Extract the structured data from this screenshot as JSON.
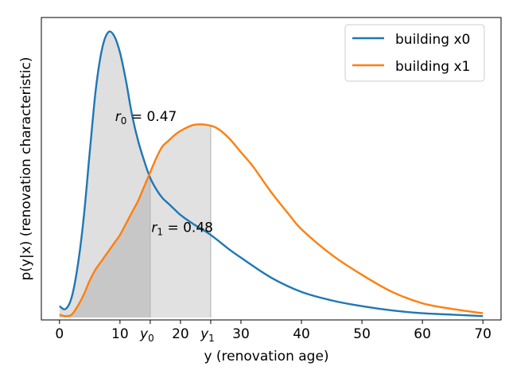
{
  "chart_data": {
    "type": "line",
    "xlabel": "y (renovation age)",
    "ylabel": "p(y|x) (renovation characteristic)",
    "xlim": [
      -3,
      73
    ],
    "ylim": [
      0,
      1
    ],
    "x_ticks": [
      0,
      10,
      20,
      30,
      40,
      50,
      60,
      70
    ],
    "x_tick_labels": [
      "0",
      "10",
      "20",
      "30",
      "40",
      "50",
      "60",
      "70"
    ],
    "special_ticks": [
      {
        "x": 15,
        "label": "y",
        "sub": "0"
      },
      {
        "x": 25,
        "label": "y",
        "sub": "1"
      }
    ],
    "y_ticks_shown": false,
    "grid": false,
    "legend_position": "top-right",
    "series": [
      {
        "name": "building x0",
        "color": "#1f77b4",
        "x": [
          0,
          1,
          2,
          3,
          4,
          5,
          6,
          7,
          8,
          9,
          10,
          11,
          12,
          13,
          14,
          15,
          16,
          17,
          18,
          19,
          20,
          22,
          25,
          28,
          30,
          35,
          40,
          45,
          50,
          55,
          60,
          65,
          70
        ],
        "y": [
          0.04,
          0.03,
          0.07,
          0.18,
          0.35,
          0.58,
          0.8,
          0.94,
          1.0,
          0.99,
          0.93,
          0.83,
          0.71,
          0.62,
          0.55,
          0.49,
          0.45,
          0.42,
          0.4,
          0.38,
          0.36,
          0.33,
          0.29,
          0.24,
          0.21,
          0.14,
          0.09,
          0.06,
          0.04,
          0.025,
          0.015,
          0.01,
          0.005
        ]
      },
      {
        "name": "building x1",
        "color": "#ff7f0e",
        "x": [
          0,
          1,
          2,
          3,
          4,
          5,
          6,
          7,
          8,
          9,
          10,
          11,
          12,
          13,
          14,
          15,
          16,
          17,
          18,
          19,
          20,
          22,
          24,
          26,
          28,
          30,
          32,
          35,
          38,
          40,
          45,
          50,
          55,
          60,
          65,
          70
        ],
        "y": [
          0.01,
          0.005,
          0.01,
          0.04,
          0.08,
          0.13,
          0.17,
          0.2,
          0.23,
          0.26,
          0.29,
          0.33,
          0.37,
          0.41,
          0.46,
          0.51,
          0.56,
          0.6,
          0.62,
          0.64,
          0.655,
          0.675,
          0.677,
          0.665,
          0.63,
          0.58,
          0.53,
          0.44,
          0.36,
          0.31,
          0.22,
          0.15,
          0.09,
          0.05,
          0.03,
          0.015
        ]
      }
    ],
    "shaded_regions": [
      {
        "series": "building x0",
        "from": 0,
        "to": 15,
        "color": "#808080",
        "alpha": 0.25
      },
      {
        "series": "building x1",
        "from": 0,
        "to": 15,
        "color": "#808080",
        "alpha": 0.25
      },
      {
        "series": "building x1",
        "from": 15,
        "to": 25,
        "color": "#c8c8c8",
        "alpha": 0.55
      }
    ],
    "annotations": [
      {
        "label": "r",
        "sub": "0",
        "text": " = 0.47",
        "x": 9.2,
        "y": 0.69
      },
      {
        "label": "r",
        "sub": "1",
        "text": " = 0.48",
        "x": 15.2,
        "y": 0.3
      }
    ]
  }
}
